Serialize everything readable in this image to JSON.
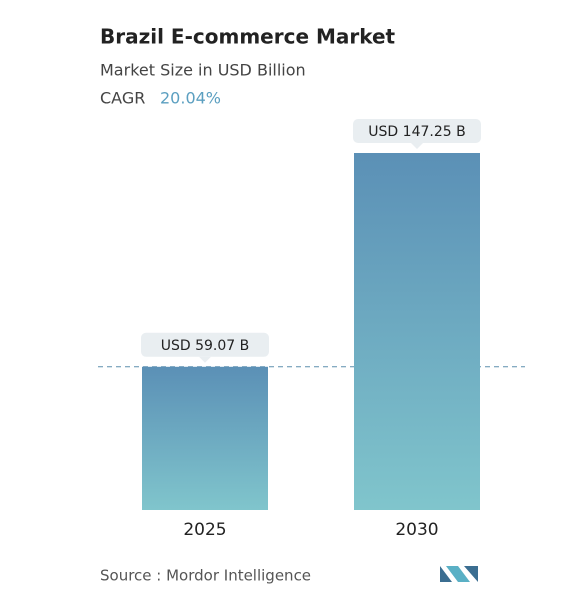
{
  "chart_data": {
    "type": "bar",
    "title": "Brazil E-commerce Market",
    "subtitle": "Market Size in USD Billion",
    "cagr_label": "CAGR",
    "cagr": "20.04%",
    "categories": [
      "2025",
      "2030"
    ],
    "values": [
      59.07,
      147.25
    ],
    "value_labels": [
      "USD 59.07 B",
      "USD 147.25 B"
    ],
    "color_top": "#5b90b6",
    "color_bottom": "#80c5cc",
    "source": "Source :  Mordor Intelligence"
  }
}
